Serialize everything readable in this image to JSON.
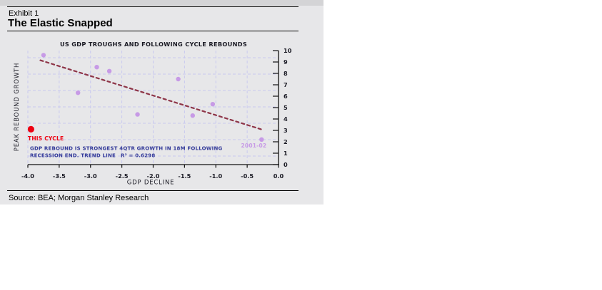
{
  "page": {
    "exhibit_label": "Exhibit 1",
    "title": "The Elastic Snapped",
    "source": "Source: BEA; Morgan Stanley Research"
  },
  "chart_data": {
    "type": "scatter",
    "title": "US GDP TROUGHS AND FOLLOWING CYCLE REBOUNDS",
    "xlabel": "GDP DECLINE",
    "ylabel": "PEAK REBOUND GROWTH",
    "xlim": [
      -4.0,
      0.0
    ],
    "ylim": [
      0,
      10
    ],
    "x_ticks": [
      "-4.0",
      "-3.5",
      "-3.0",
      "-2.5",
      "-2.0",
      "-1.5",
      "-1.0",
      "-0.5",
      "0.0"
    ],
    "y_ticks": [
      "0",
      "1",
      "2",
      "3",
      "4",
      "5",
      "6",
      "7",
      "8",
      "9",
      "10"
    ],
    "grid": "dashed",
    "legend_position": "none",
    "series": [
      {
        "name": "prior-cycles",
        "color": "#c79ae6",
        "points": [
          [
            -3.75,
            9.6
          ],
          [
            -3.2,
            6.3
          ],
          [
            -2.9,
            8.55
          ],
          [
            -2.7,
            8.2
          ],
          [
            -2.25,
            4.4
          ],
          [
            -1.6,
            7.5
          ],
          [
            -1.37,
            4.3
          ],
          [
            -1.05,
            5.3
          ],
          [
            -0.27,
            2.2
          ]
        ]
      },
      {
        "name": "this-cycle",
        "color": "#ee0011",
        "points": [
          [
            -3.95,
            3.1
          ]
        ]
      }
    ],
    "trend_line": {
      "x1": -3.8,
      "y1": 9.15,
      "x2": -0.25,
      "y2": 3.05,
      "style": "dashed",
      "color": "#8e3548",
      "r_squared": 0.6298
    },
    "point_labels": [
      {
        "text": "THIS CYCLE",
        "x": -4.0,
        "y": 2.3,
        "anchor": "start",
        "color": "#ee0011"
      },
      {
        "text": "2001-02",
        "x": -0.19,
        "y": 1.7,
        "anchor": "end",
        "color": "#c79ae6"
      }
    ],
    "annotation": {
      "line1": "GDP REBOUND IS STRONGEST 4QTR GROWTH IN 18M FOLLOWING",
      "line2": "RECESSION END.  TREND LINE",
      "r2_text": "R² = 0.6298",
      "color": "#333a99"
    },
    "colors": {
      "grid": "#c9c9ef",
      "axis": "#111111",
      "title_text": "#1a1a24"
    }
  }
}
